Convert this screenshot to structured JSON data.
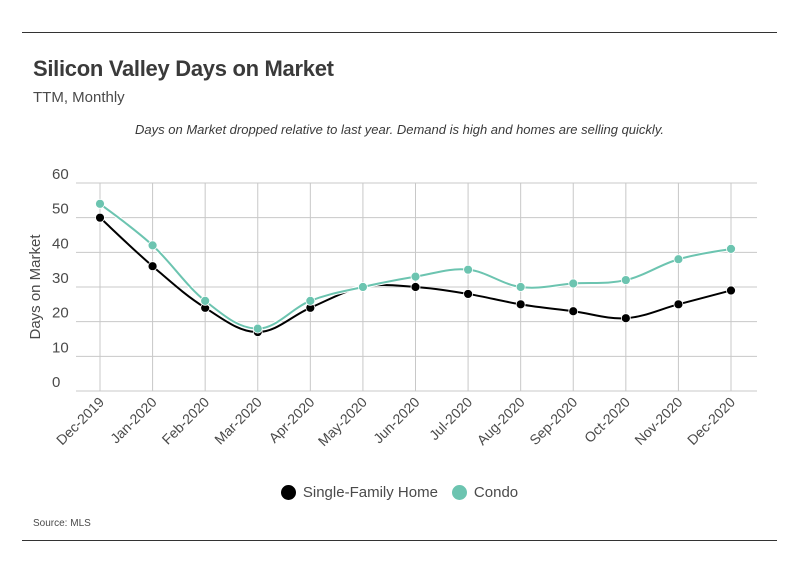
{
  "title": "Silicon Valley Days on Market",
  "subtitle": "TTM, Monthly",
  "annotation": "Days on Market dropped relative to last year. Demand is high and homes are selling quickly.",
  "source": "Source:  MLS",
  "colors": {
    "single_family": "#000000",
    "condo": "#6cc4b0",
    "grid": "#c8c8c8"
  },
  "chart_data": {
    "type": "line",
    "title": "Silicon Valley Days on Market",
    "subtitle": "TTM, Monthly",
    "xlabel": "",
    "ylabel": "Days on Market",
    "ylim": [
      0,
      60
    ],
    "yticks": [
      0,
      10,
      20,
      30,
      40,
      50,
      60
    ],
    "grid": true,
    "legend_position": "bottom-center",
    "categories": [
      "Dec-2019",
      "Jan-2020",
      "Feb-2020",
      "Mar-2020",
      "Apr-2020",
      "May-2020",
      "Jun-2020",
      "Jul-2020",
      "Aug-2020",
      "Sep-2020",
      "Oct-2020",
      "Nov-2020",
      "Dec-2020"
    ],
    "series": [
      {
        "name": "Single-Family Home",
        "color": "#000000",
        "values": [
          50,
          36,
          24,
          17,
          24,
          30,
          30,
          28,
          25,
          23,
          21,
          25,
          29
        ]
      },
      {
        "name": "Condo",
        "color": "#6cc4b0",
        "values": [
          54,
          42,
          26,
          18,
          26,
          30,
          33,
          35,
          30,
          31,
          32,
          38,
          41
        ]
      }
    ]
  }
}
